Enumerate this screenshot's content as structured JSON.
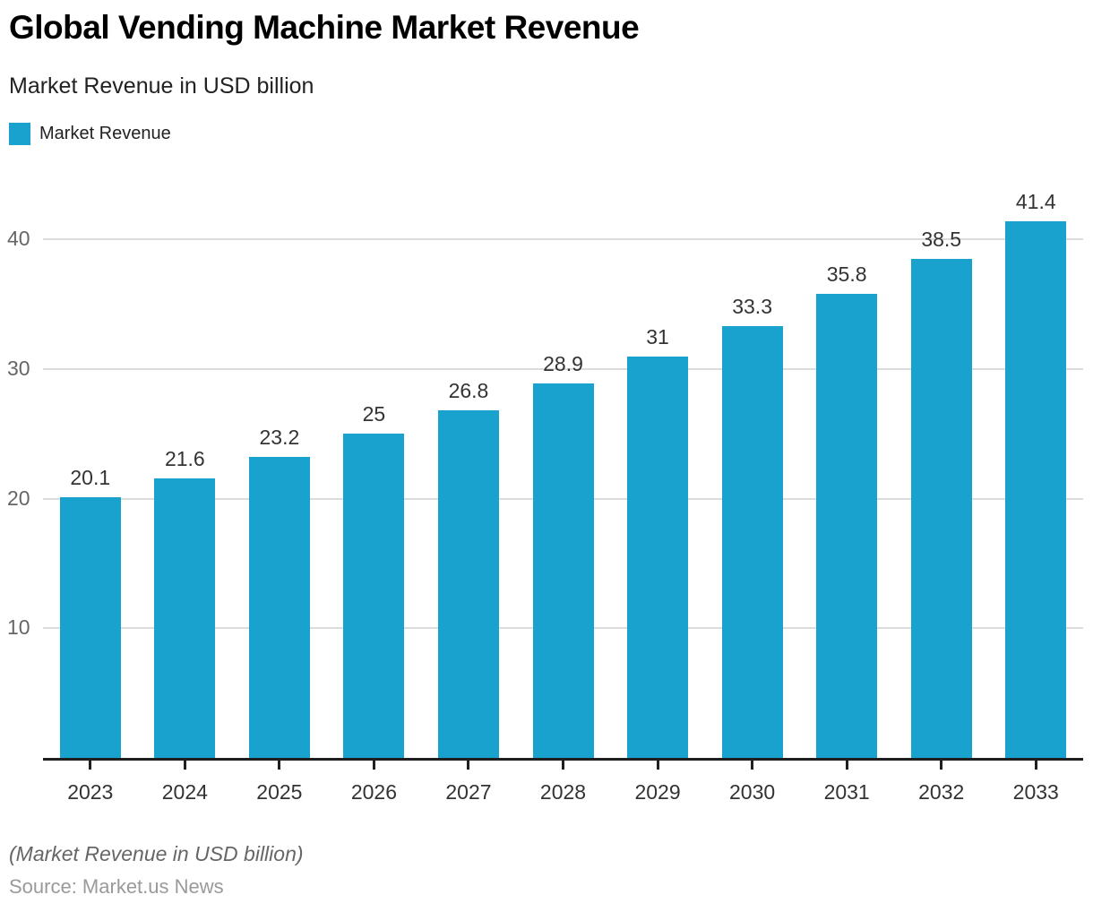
{
  "header": {
    "title": "Global Vending Machine Market Revenue",
    "subtitle": "Market Revenue in USD billion"
  },
  "chart_data": {
    "type": "bar",
    "title": "Global Vending Machine Market Revenue",
    "subtitle": "Market Revenue in USD billion",
    "categories": [
      "2023",
      "2024",
      "2025",
      "2026",
      "2027",
      "2028",
      "2029",
      "2030",
      "2031",
      "2032",
      "2033"
    ],
    "series": [
      {
        "name": "Market Revenue",
        "color": "#1AA2CE",
        "values": [
          20.1,
          21.6,
          23.2,
          25,
          26.8,
          28.9,
          31,
          33.3,
          35.8,
          38.5,
          41.4
        ]
      }
    ],
    "value_labels": [
      "20.1",
      "21.6",
      "23.2",
      "25",
      "26.8",
      "28.9",
      "31",
      "33.3",
      "35.8",
      "38.5",
      "41.4"
    ],
    "xlabel": "",
    "ylabel": "",
    "yticks": [
      10,
      20,
      30,
      40
    ],
    "ylim": [
      0,
      44.65
    ],
    "grid": true,
    "legend_position": "top-left",
    "colors": {
      "bar": "#1AA2CE",
      "grid": "#DCDCDC",
      "axis": "#1f1f1f",
      "y_label": "#666666",
      "x_label": "#333333",
      "value_label": "#333333"
    }
  },
  "footer": {
    "note": "(Market Revenue in USD billion)",
    "source": "Source: Market.us News"
  }
}
